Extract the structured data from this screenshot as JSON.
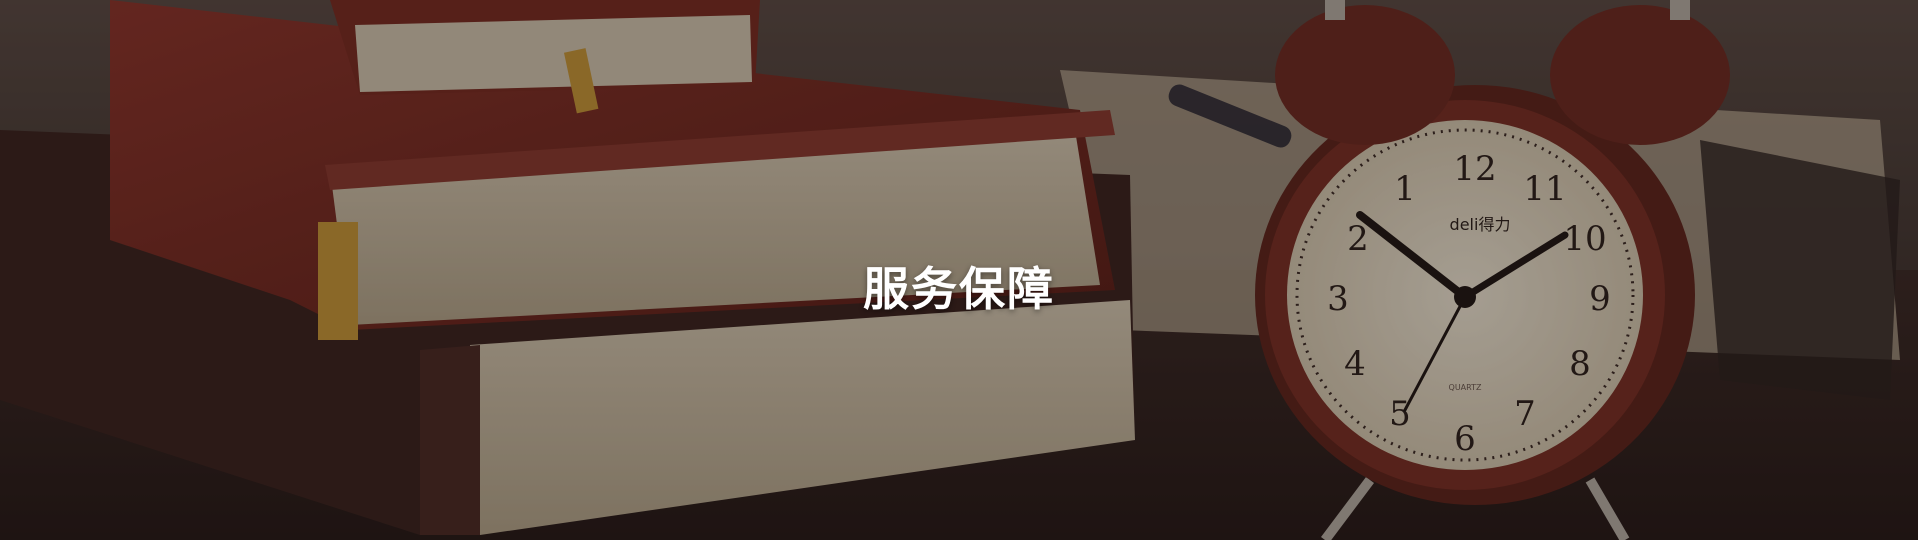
{
  "banner": {
    "title": "服务保障",
    "clock_brand": "deli得力",
    "clock_numerals": [
      "12",
      "1",
      "2",
      "3",
      "4",
      "5",
      "6",
      "7",
      "8",
      "9",
      "10",
      "11"
    ],
    "clock_label": "QUARTZ"
  },
  "colors": {
    "overlay": "#140c0a",
    "book_red": "#7a2a22",
    "clock_body": "#6b2a22",
    "dial": "#efe6d2"
  },
  "icons": [
    "book-stack-icon",
    "alarm-clock-icon",
    "notebook-icon"
  ]
}
